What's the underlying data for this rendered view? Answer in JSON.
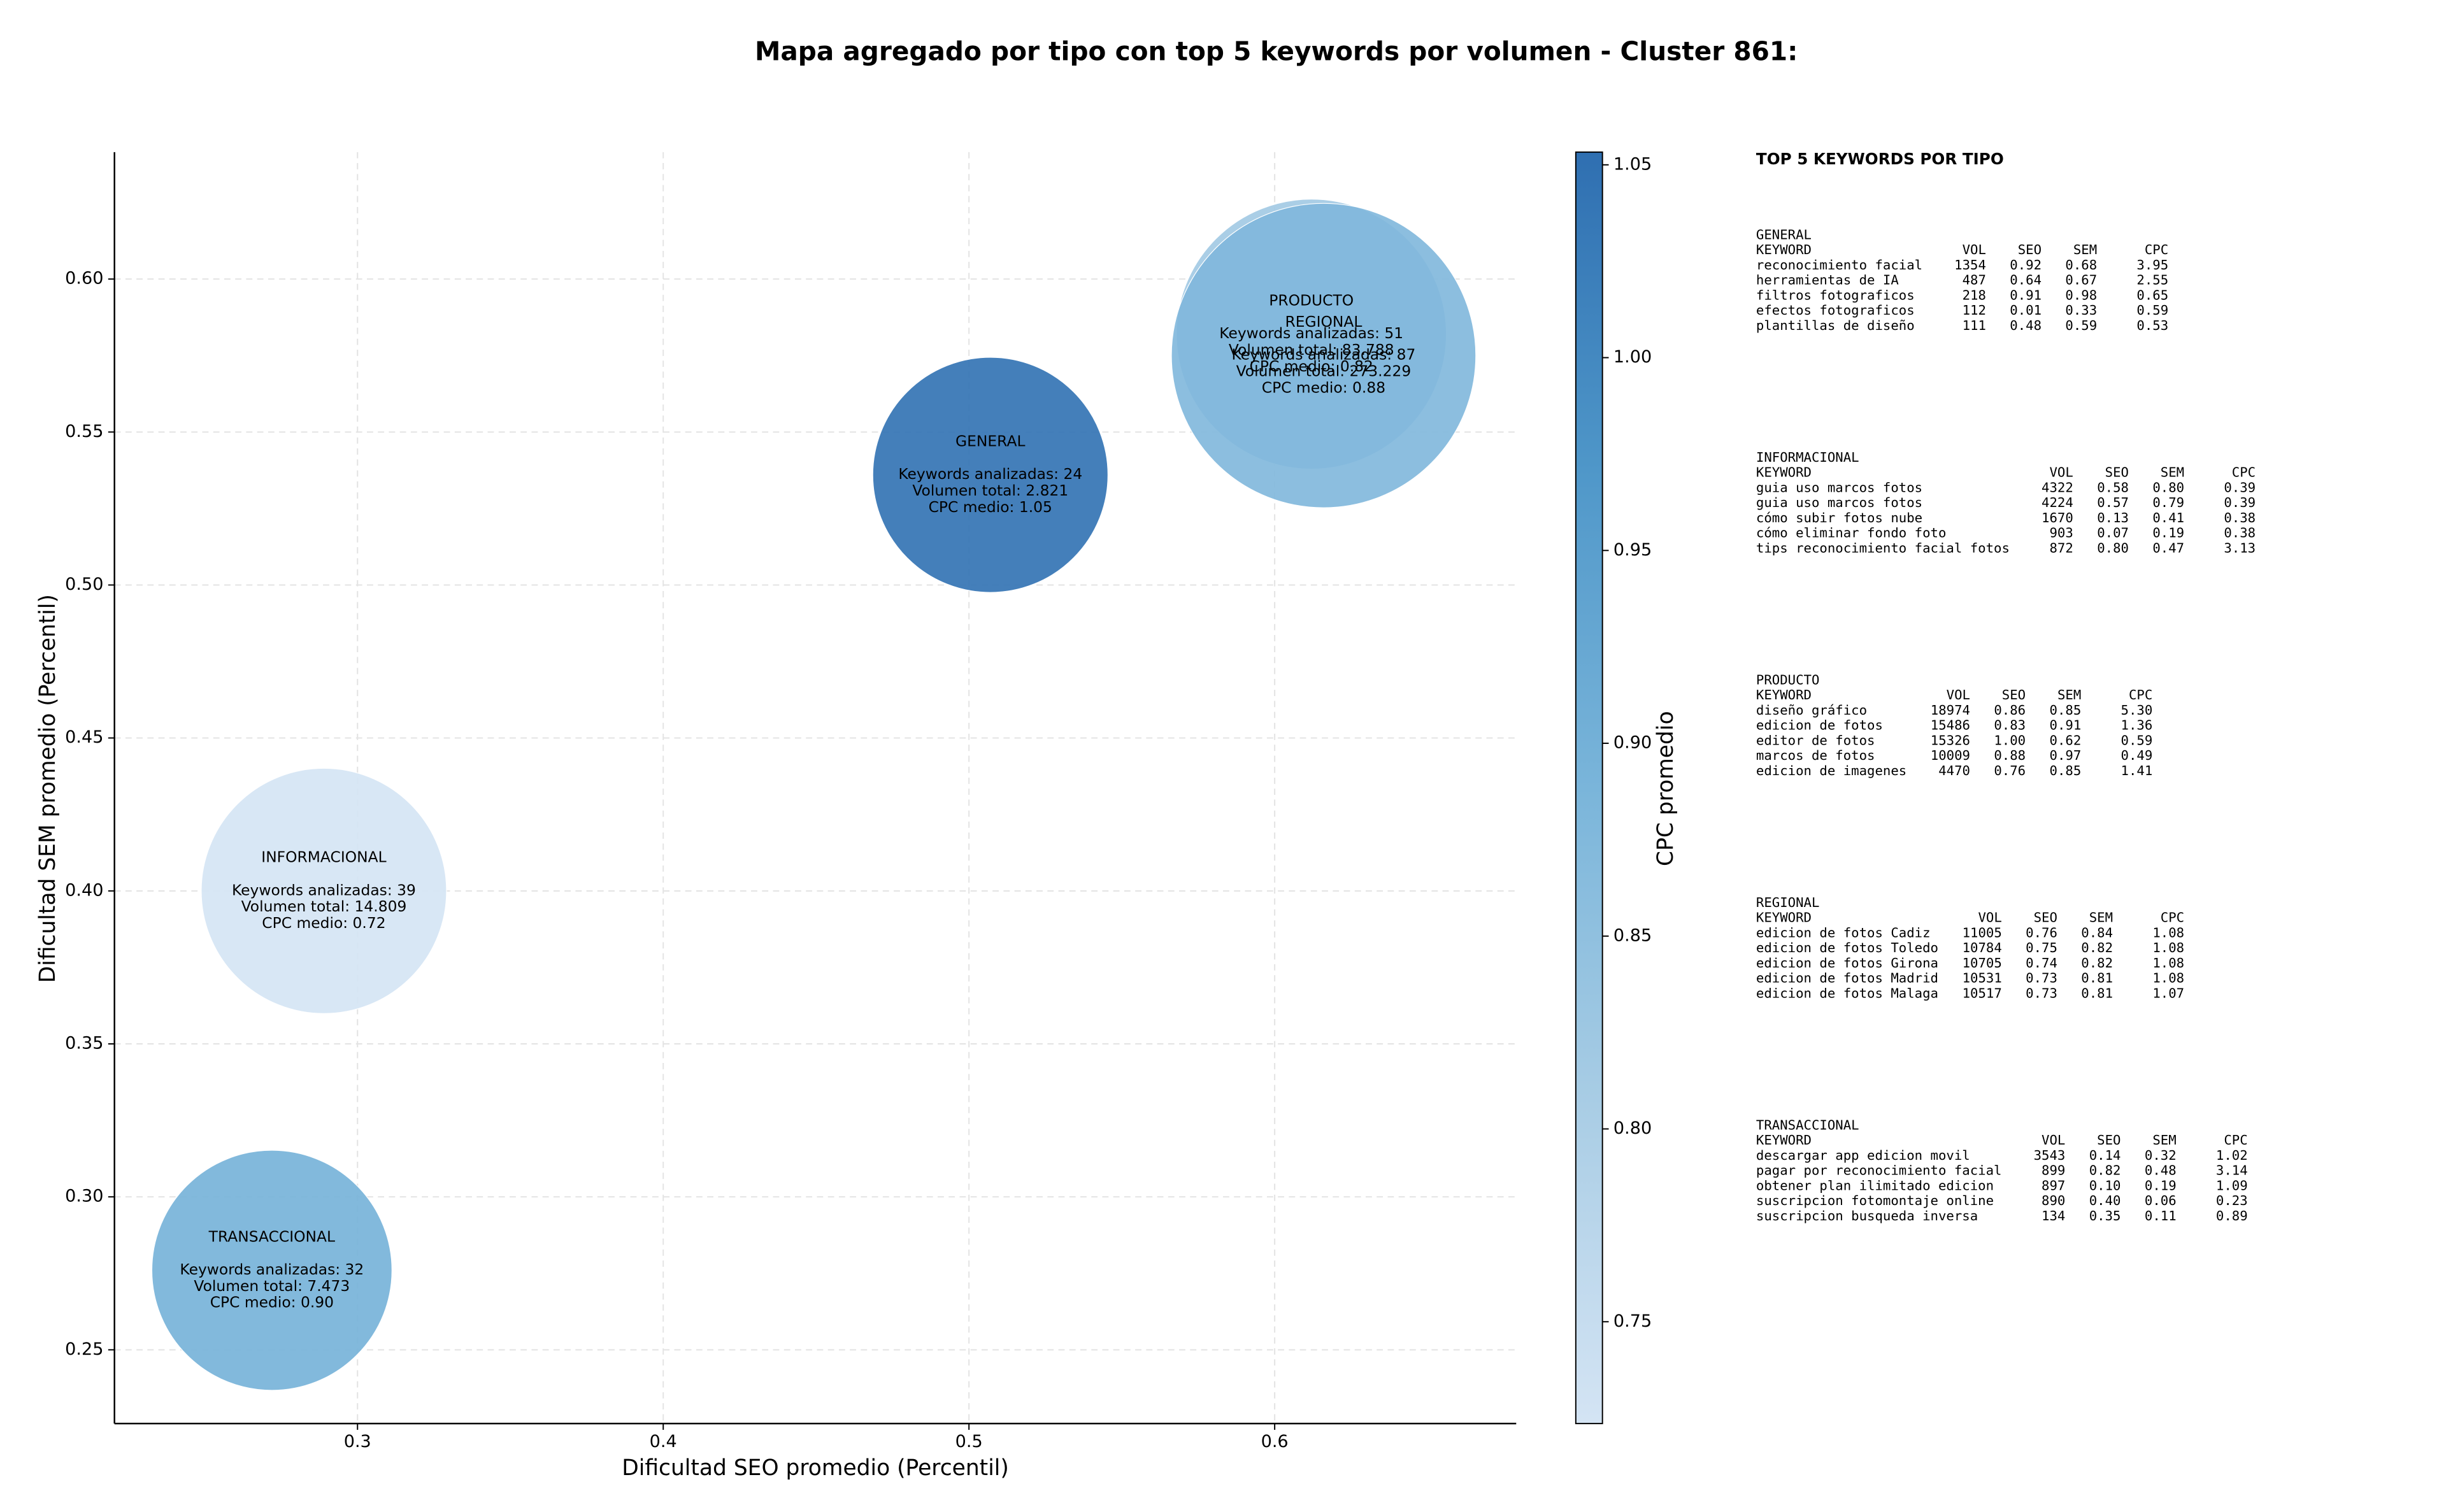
{
  "chart_data": {
    "type": "bubble",
    "title": "Mapa agregado por tipo con top 5 keywords por volumen - Cluster 861:",
    "x_label": "Dificultad SEO promedio (Percentil)",
    "y_label": "Dificultad SEM promedio (Percentil)",
    "colorbar_label": "CPC promedio",
    "categories": [
      "GENERAL",
      "INFORMACIONAL",
      "PRODUCTO",
      "REGIONAL",
      "TRANSACCIONAL"
    ],
    "x": [
      0.507,
      0.289,
      0.612,
      0.616,
      0.272
    ],
    "values": [
      0.536,
      0.4,
      0.582,
      0.575,
      0.276
    ],
    "sizes": [
      2821,
      14809,
      83788,
      273229,
      7473
    ],
    "color_values": [
      1.05,
      0.72,
      0.82,
      0.88,
      0.9
    ],
    "annotations": [
      [
        "Keywords analizadas: 24",
        "Volumen total: 2.821",
        "CPC medio: 1.05"
      ],
      [
        "Keywords analizadas: 39",
        "Volumen total: 14.809",
        "CPC medio: 0.72"
      ],
      [
        "Keywords analizadas: 51",
        "Volumen total: 83.788",
        "CPC medio: 0.82"
      ],
      [
        "Keywords analizadas: 87",
        "Volumen total: 273.229",
        "CPC medio: 0.88"
      ],
      [
        "Keywords analizadas: 32",
        "Volumen total: 7.473",
        "CPC medio: 0.90"
      ]
    ],
    "xlim": [
      0.2205,
      0.679
    ],
    "ylim": [
      0.2259,
      0.6415
    ],
    "xticks": [
      {
        "value": 0.3,
        "label": "0.3"
      },
      0.4,
      0.5,
      0.6
    ],
    "yticks": [
      0.25,
      {
        "value": 0.3,
        "label": "0.30"
      },
      0.35,
      {
        "value": 0.4,
        "label": "0.40"
      },
      0.45,
      {
        "value": 0.5,
        "label": "0.50"
      },
      0.55,
      {
        "value": 0.6,
        "label": "0.60"
      }
    ],
    "clim": [
      0.7236,
      1.0533
    ],
    "cticks": [
      0.75,
      {
        "value": 0.8,
        "label": "0.80"
      },
      0.85,
      {
        "value": 0.9,
        "label": "0.90"
      },
      0.95,
      {
        "value": 1.0,
        "label": "1.00"
      },
      1.05
    ],
    "colormap": [
      "#d4e4f4",
      "#a9cde5",
      "#7ab5da",
      "#4f97c9",
      "#2f6fb1"
    ],
    "grid": true,
    "panel_title": "TOP 5 KEYWORDS POR TIPO",
    "tables": [
      {
        "name": "GENERAL",
        "columns": [
          "KEYWORD",
          "VOL",
          "SEO",
          "SEM",
          "CPC"
        ],
        "rows": [
          [
            "reconocimiento facial",
            "1354",
            "0.92",
            "0.68",
            "3.95"
          ],
          [
            "herramientas de IA",
            "487",
            "0.64",
            "0.67",
            "2.55"
          ],
          [
            "filtros fotograficos",
            "218",
            "0.91",
            "0.98",
            "0.65"
          ],
          [
            "efectos fotograficos",
            "112",
            "0.01",
            "0.33",
            "0.59"
          ],
          [
            "plantillas de diseño",
            "111",
            "0.48",
            "0.59",
            "0.53"
          ]
        ]
      },
      {
        "name": "INFORMACIONAL",
        "columns": [
          "KEYWORD",
          "VOL",
          "SEO",
          "SEM",
          "CPC"
        ],
        "rows": [
          [
            "guia uso marcos fotos",
            "4322",
            "0.58",
            "0.80",
            "0.39"
          ],
          [
            "guia uso marcos fotos",
            "4224",
            "0.57",
            "0.79",
            "0.39"
          ],
          [
            "cómo subir fotos nube",
            "1670",
            "0.13",
            "0.41",
            "0.38"
          ],
          [
            "cómo eliminar fondo foto",
            "903",
            "0.07",
            "0.19",
            "0.38"
          ],
          [
            "tips reconocimiento facial fotos",
            "872",
            "0.80",
            "0.47",
            "3.13"
          ]
        ]
      },
      {
        "name": "PRODUCTO",
        "columns": [
          "KEYWORD",
          "VOL",
          "SEO",
          "SEM",
          "CPC"
        ],
        "rows": [
          [
            "diseño gráfico",
            "18974",
            "0.86",
            "0.85",
            "5.30"
          ],
          [
            "edicion de fotos",
            "15486",
            "0.83",
            "0.91",
            "1.36"
          ],
          [
            "editor de fotos",
            "15326",
            "1.00",
            "0.62",
            "0.59"
          ],
          [
            "marcos de fotos",
            "10009",
            "0.88",
            "0.97",
            "0.49"
          ],
          [
            "edicion de imagenes",
            "4470",
            "0.76",
            "0.85",
            "1.41"
          ]
        ]
      },
      {
        "name": "REGIONAL",
        "columns": [
          "KEYWORD",
          "VOL",
          "SEO",
          "SEM",
          "CPC"
        ],
        "rows": [
          [
            "edicion de fotos Cadiz",
            "11005",
            "0.76",
            "0.84",
            "1.08"
          ],
          [
            "edicion de fotos Toledo",
            "10784",
            "0.75",
            "0.82",
            "1.08"
          ],
          [
            "edicion de fotos Girona",
            "10705",
            "0.74",
            "0.82",
            "1.08"
          ],
          [
            "edicion de fotos Madrid",
            "10531",
            "0.73",
            "0.81",
            "1.08"
          ],
          [
            "edicion de fotos Malaga",
            "10517",
            "0.73",
            "0.81",
            "1.07"
          ]
        ]
      },
      {
        "name": "TRANSACCIONAL",
        "columns": [
          "KEYWORD",
          "VOL",
          "SEO",
          "SEM",
          "CPC"
        ],
        "rows": [
          [
            "descargar app edicion movil",
            "3543",
            "0.14",
            "0.32",
            "1.02"
          ],
          [
            "pagar por reconocimiento facial",
            "899",
            "0.82",
            "0.48",
            "3.14"
          ],
          [
            "obtener plan ilimitado edicion",
            "897",
            "0.10",
            "0.19",
            "1.09"
          ],
          [
            "suscripcion fotomontaje online",
            "890",
            "0.40",
            "0.06",
            "0.23"
          ],
          [
            "suscripcion busqueda inversa",
            "134",
            "0.35",
            "0.11",
            "0.89"
          ]
        ]
      }
    ]
  }
}
